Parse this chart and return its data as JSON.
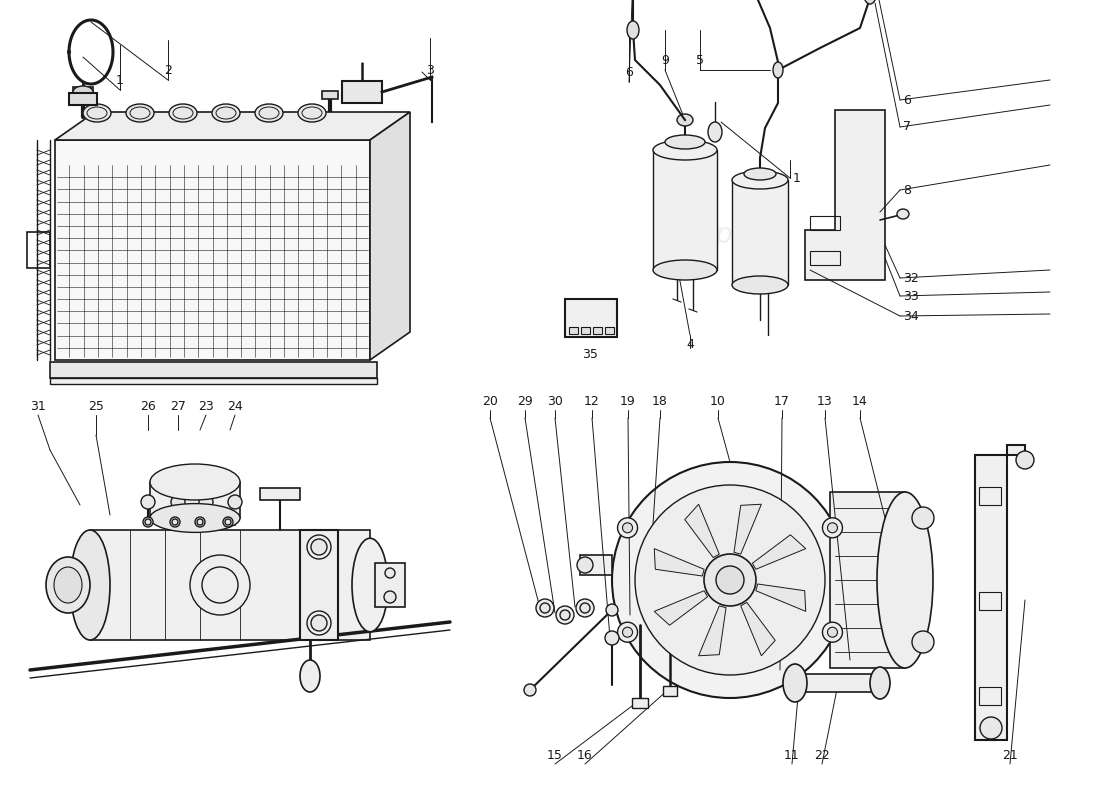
{
  "bg": "#ffffff",
  "lc": "#1a1a1a",
  "lw": 1.0,
  "wm_color": "#cccccc",
  "wm_alpha": 0.3,
  "fs": 9
}
